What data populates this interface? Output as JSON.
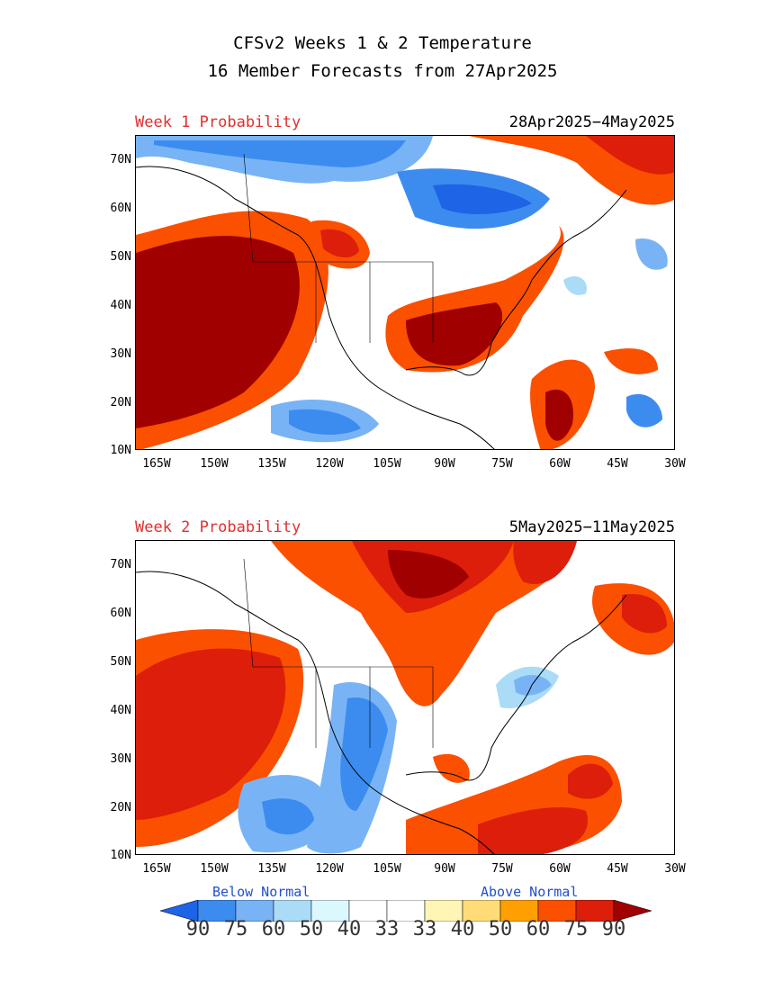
{
  "title": {
    "line1": "CFSv2 Weeks 1 & 2 Temperature",
    "line2": "16 Member Forecasts from 27Apr2025"
  },
  "panels": [
    {
      "label": "Week 1 Probability",
      "dates": "28Apr2025−4May2025"
    },
    {
      "label": "Week 2 Probability",
      "dates": "5May2025−11May2025"
    }
  ],
  "axes": {
    "lat_labels": [
      "70N",
      "60N",
      "50N",
      "40N",
      "30N",
      "20N",
      "10N"
    ],
    "lon_labels": [
      "165W",
      "150W",
      "135W",
      "120W",
      "105W",
      "90W",
      "75W",
      "60W",
      "45W",
      "30W"
    ]
  },
  "legend": {
    "below_label": "Below Normal",
    "above_label": "Above Normal",
    "values": [
      "90",
      "75",
      "60",
      "50",
      "40",
      "33",
      "33",
      "40",
      "50",
      "60",
      "75",
      "90"
    ],
    "colors": [
      "#1e64e6",
      "#3c8cf0",
      "#78b4f5",
      "#aadcf8",
      "#dcf8ff",
      "#ffffff",
      "#ffffff",
      "#fff5b4",
      "#ffdc78",
      "#ffa000",
      "#fa5000",
      "#dc1e0a",
      "#a00000"
    ]
  }
}
